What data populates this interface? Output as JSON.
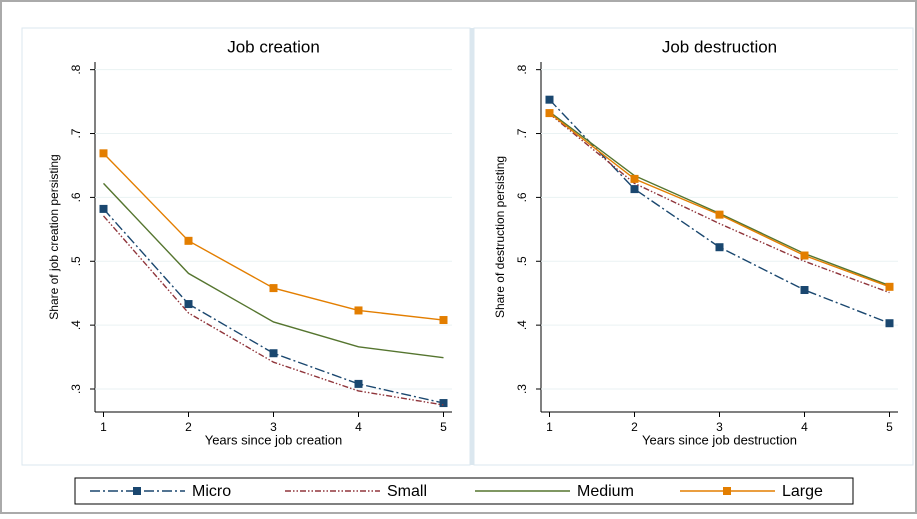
{
  "chart_data": [
    {
      "type": "line",
      "title": "Job creation",
      "ylabel": "Share of job creation persisting",
      "xlabel": "Years since job creation",
      "x": [
        1,
        2,
        3,
        4,
        5
      ],
      "xlim": [
        0.9,
        5.1
      ],
      "xticks": [
        1,
        2,
        3,
        4,
        5
      ],
      "ylim": [
        0.264,
        0.812
      ],
      "yticks": [
        {
          "value": 0.3,
          "label": ".3"
        },
        {
          "value": 0.4,
          "label": ".4"
        },
        {
          "value": 0.5,
          "label": ".5"
        },
        {
          "value": 0.6,
          "label": ".6"
        },
        {
          "value": 0.7,
          "label": ".7"
        },
        {
          "value": 0.8,
          "label": ".8"
        }
      ],
      "grid": true,
      "legend": "bottom",
      "series": [
        {
          "name": "Micro",
          "color": "#1a476f",
          "line_style": "dashdot",
          "marker": "square",
          "values": [
            0.582,
            0.433,
            0.356,
            0.308,
            0.278
          ]
        },
        {
          "name": "Small",
          "color": "#90353b",
          "line_style": "dashdotdot",
          "marker": null,
          "values": [
            0.571,
            0.419,
            0.342,
            0.297,
            0.275
          ]
        },
        {
          "name": "Medium",
          "color": "#55752f",
          "line_style": "solid",
          "marker": null,
          "values": [
            0.622,
            0.481,
            0.405,
            0.366,
            0.349
          ]
        },
        {
          "name": "Large",
          "color": "#e37e00",
          "line_style": "solid",
          "marker": "square",
          "values": [
            0.669,
            0.532,
            0.458,
            0.423,
            0.408
          ]
        }
      ]
    },
    {
      "type": "line",
      "title": "Job destruction",
      "ylabel": "Share of destruction persisting",
      "xlabel": "Years since job destruction",
      "x": [
        1,
        2,
        3,
        4,
        5
      ],
      "xlim": [
        0.9,
        5.1
      ],
      "xticks": [
        1,
        2,
        3,
        4,
        5
      ],
      "ylim": [
        0.264,
        0.812
      ],
      "yticks": [
        {
          "value": 0.3,
          "label": ".3"
        },
        {
          "value": 0.4,
          "label": ".4"
        },
        {
          "value": 0.5,
          "label": ".5"
        },
        {
          "value": 0.6,
          "label": ".6"
        },
        {
          "value": 0.7,
          "label": ".7"
        },
        {
          "value": 0.8,
          "label": ".8"
        }
      ],
      "grid": true,
      "series": [
        {
          "name": "Micro",
          "color": "#1a476f",
          "line_style": "dashdot",
          "marker": "square",
          "values": [
            0.753,
            0.613,
            0.522,
            0.455,
            0.403
          ]
        },
        {
          "name": "Small",
          "color": "#90353b",
          "line_style": "dashdotdot",
          "marker": null,
          "values": [
            0.731,
            0.622,
            0.559,
            0.5,
            0.451
          ]
        },
        {
          "name": "Medium",
          "color": "#55752f",
          "line_style": "solid",
          "marker": null,
          "values": [
            0.734,
            0.634,
            0.575,
            0.512,
            0.462
          ]
        },
        {
          "name": "Large",
          "color": "#e37e00",
          "line_style": "solid",
          "marker": "square",
          "values": [
            0.732,
            0.629,
            0.573,
            0.509,
            0.46
          ]
        }
      ]
    }
  ]
}
